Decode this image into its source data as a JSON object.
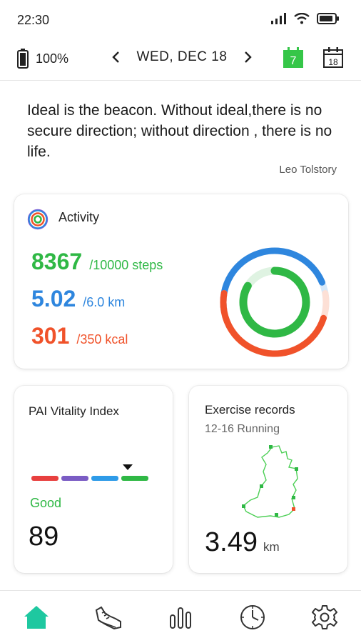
{
  "status_bar": {
    "time": "22:30"
  },
  "header": {
    "battery_percent": "100%",
    "date": "WED, DEC 18",
    "calendar_today_day": "7",
    "calendar_day": "18"
  },
  "quote": {
    "text": "Ideal is the beacon. Without ideal,there is no secure direction; without direction , there is no life.",
    "author": "Leo Tolstory"
  },
  "activity": {
    "title": "Activity",
    "steps": {
      "value": "8367",
      "goal": "/10000 steps",
      "fraction": 0.8367
    },
    "distance": {
      "value": "5.02",
      "goal": "/6.0 km",
      "fraction": 0.8367
    },
    "calories": {
      "value": "301",
      "goal": "/350 kcal",
      "fraction": 0.86
    },
    "colors": {
      "steps": "#2fb845",
      "distance": "#2e86de",
      "calories": "#f0522a"
    }
  },
  "pai": {
    "title": "PAI  Vitality Index",
    "status": "Good",
    "value": "89",
    "bar_colors": [
      "#e8403f",
      "#7a5cc4",
      "#2e9be8",
      "#2fb845"
    ]
  },
  "exercise": {
    "title": "Exercise records",
    "subtitle": "12-16  Running",
    "distance": "3.49",
    "unit": "km"
  },
  "bottom_nav": {
    "items": [
      "home-icon",
      "shoe-icon",
      "chart-icon",
      "clock-icon",
      "settings-icon"
    ],
    "active_color": "#1ec8a0"
  }
}
